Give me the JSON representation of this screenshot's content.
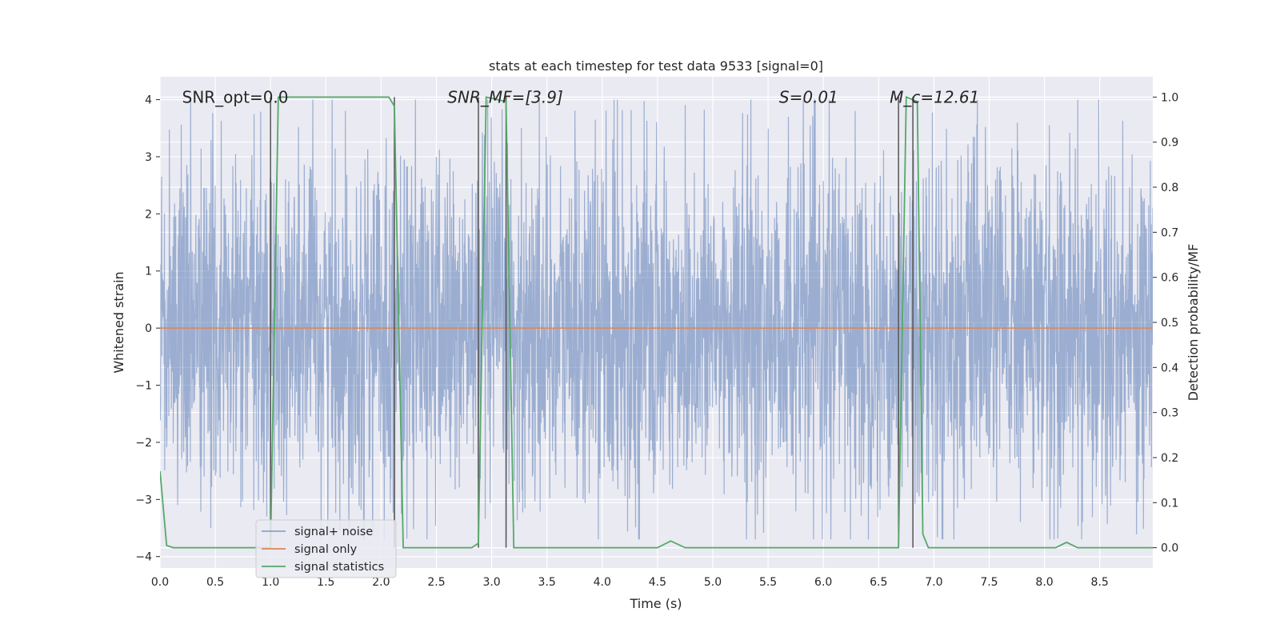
{
  "chart_data": {
    "type": "line",
    "title": "stats at each timestep for test data 9533 [signal=0]",
    "xlabel": "Time (s)",
    "ylabel": "Whitened strain",
    "ylabel_right": "Detection probability/MF",
    "xlim": [
      0.0,
      8.98
    ],
    "ylim": [
      -4.2,
      4.4
    ],
    "ylim_right": [
      -0.045,
      1.045
    ],
    "x_ticks": [
      "0.0",
      "0.5",
      "1.0",
      "1.5",
      "2.0",
      "2.5",
      "3.0",
      "3.5",
      "4.0",
      "4.5",
      "5.0",
      "5.5",
      "6.0",
      "6.5",
      "7.0",
      "7.5",
      "8.0",
      "8.5"
    ],
    "y_ticks": [
      "−4",
      "−3",
      "−2",
      "−1",
      "0",
      "1",
      "2",
      "3",
      "4"
    ],
    "y_ticks_right": [
      "0.0",
      "0.1",
      "0.2",
      "0.3",
      "0.4",
      "0.5",
      "0.6",
      "0.7",
      "0.8",
      "0.9",
      "1.0"
    ],
    "grid": true,
    "legend_position": "lower-left",
    "annotations": [
      {
        "text": "SNR_opt=0.0",
        "x": 0.2,
        "y": 4.0,
        "italic": false
      },
      {
        "text": "SNR_MF=[3.9]",
        "x": 2.6,
        "y": 4.0,
        "italic": true
      },
      {
        "text": "S=0.01",
        "x": 5.6,
        "y": 4.0,
        "italic": true
      },
      {
        "text": "M_c=12.61",
        "x": 6.6,
        "y": 4.0,
        "italic": true
      }
    ],
    "vertical_lines": [
      1.0,
      2.12,
      2.88,
      3.13,
      6.68,
      6.81
    ],
    "series": [
      {
        "name": "signal+ noise",
        "color": "#4C72B0",
        "axis": "left",
        "kind": "noise",
        "amplitude_typical": 1.6,
        "y_range": [
          -3.7,
          4.0
        ]
      },
      {
        "name": "signal only",
        "color": "#DD8452",
        "axis": "left",
        "x": [
          0.0,
          8.98
        ],
        "y": [
          0.0,
          0.0
        ]
      },
      {
        "name": "signal statistics",
        "color": "#55A868",
        "axis": "right",
        "x": [
          0.0,
          0.06,
          0.12,
          1.0,
          1.07,
          2.07,
          2.12,
          2.2,
          2.82,
          2.88,
          2.95,
          3.13,
          3.2,
          4.5,
          4.62,
          4.75,
          6.68,
          6.75,
          6.85,
          6.9,
          6.95,
          8.1,
          8.2,
          8.3,
          8.98
        ],
        "y": [
          0.17,
          0.005,
          0.0,
          0.0,
          1.0,
          1.0,
          0.98,
          0.0,
          0.0,
          0.01,
          1.0,
          0.99,
          0.0,
          0.0,
          0.015,
          0.0,
          0.0,
          1.0,
          0.99,
          0.03,
          0.0,
          0.0,
          0.012,
          0.0,
          0.0
        ]
      }
    ]
  }
}
